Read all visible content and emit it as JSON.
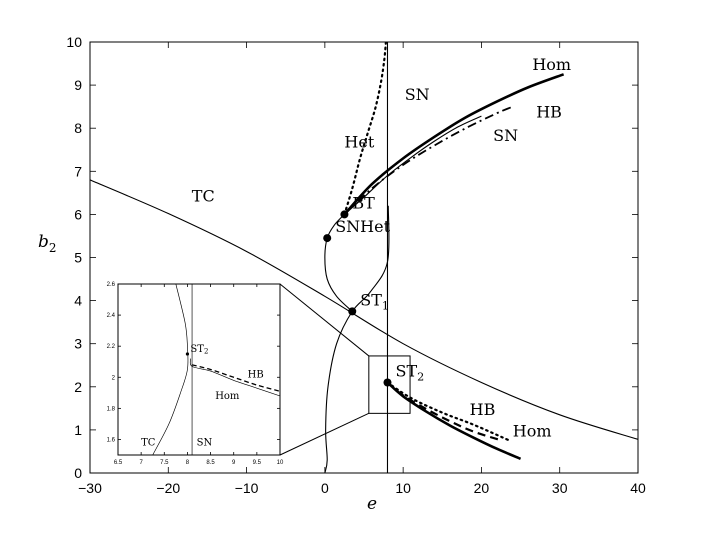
{
  "chart_data": {
    "type": "line",
    "xlabel": "e",
    "ylabel": "b",
    "ylabel_sub": "2",
    "xlim": [
      -30,
      40
    ],
    "ylim": [
      0,
      10
    ],
    "xticks": [
      "−30",
      "−20",
      "−10",
      "0",
      "10",
      "20",
      "30",
      "40"
    ],
    "yticks": [
      "0",
      "1",
      "2",
      "3",
      "4",
      "5",
      "6",
      "7",
      "8",
      "9",
      "10"
    ],
    "grid": false,
    "curves": [
      {
        "label": "TC",
        "style": "solid-thin",
        "x": [
          -30,
          -20,
          -10,
          0,
          10,
          20,
          30,
          40
        ],
        "y": [
          6.8,
          6.02,
          5.14,
          4.1,
          3.0,
          2.1,
          1.35,
          0.78
        ]
      },
      {
        "label": "SN",
        "style": "solid-thin",
        "vertical_at_x": 8.0
      },
      {
        "label": "SN",
        "style": "solid-thin",
        "x": [
          2.5,
          5,
          8,
          11,
          14,
          17,
          20
        ],
        "y": [
          6.0,
          6.4,
          6.9,
          7.32,
          7.7,
          8.03,
          8.28
        ]
      },
      {
        "label": "",
        "style": "solid-thin",
        "x": [
          0,
          0.3,
          0.1,
          0.4,
          1.5,
          3.5,
          5.8,
          8.0,
          8.1
        ],
        "y": [
          0,
          0.3,
          1,
          2,
          3,
          3.75,
          4.2,
          4.9,
          6.2
        ]
      },
      {
        "label": "",
        "style": "solid-thin",
        "x": [
          2.5,
          1.2,
          0.3,
          0,
          0.3,
          1.5,
          3.5
        ],
        "y": [
          6.0,
          5.75,
          5.45,
          5,
          4.5,
          4.1,
          3.75
        ]
      },
      {
        "label": "Hom",
        "style": "solid-thick",
        "x": [
          2.5,
          6,
          10,
          14,
          18,
          22,
          26,
          30.5
        ],
        "y": [
          6.0,
          6.7,
          7.3,
          7.8,
          8.25,
          8.62,
          8.95,
          9.25
        ]
      },
      {
        "label": "HB",
        "style": "dash-dot",
        "x": [
          2.5,
          6,
          10,
          14,
          18,
          22,
          24
        ],
        "y": [
          6.0,
          6.6,
          7.15,
          7.6,
          8.0,
          8.35,
          8.5
        ]
      },
      {
        "label": "Het",
        "style": "dotted",
        "x": [
          2.5,
          3.5,
          4.5,
          5.5,
          6.5,
          7.2,
          7.6,
          7.8
        ],
        "y": [
          6.0,
          6.6,
          7.3,
          7.9,
          8.5,
          9.1,
          9.6,
          10
        ]
      },
      {
        "label": "Hom",
        "style": "solid-thick",
        "x": [
          8.0,
          10,
          13,
          16,
          19,
          22,
          25
        ],
        "y": [
          2.1,
          1.78,
          1.42,
          1.1,
          0.82,
          0.56,
          0.33
        ]
      },
      {
        "label": "HB",
        "style": "dashed",
        "x": [
          8.0,
          10,
          13,
          16,
          19,
          22.5
        ],
        "y": [
          2.1,
          1.8,
          1.48,
          1.2,
          0.96,
          0.76
        ]
      },
      {
        "label": "",
        "style": "dotted",
        "x": [
          8.0,
          11,
          15,
          19,
          23.5
        ],
        "y": [
          2.1,
          1.74,
          1.4,
          1.12,
          0.76
        ]
      }
    ],
    "points": [
      {
        "label": "BT",
        "x": 2.5,
        "y": 6.0
      },
      {
        "label": "SNHet",
        "x": 0.3,
        "y": 5.45
      },
      {
        "label": "ST",
        "sub": "1",
        "x": 3.5,
        "y": 3.75
      },
      {
        "label": "ST",
        "sub": "2",
        "x": 8.0,
        "y": 2.1
      }
    ],
    "curve_labels": [
      {
        "text": "TC",
        "x": -17,
        "y": 6.3
      },
      {
        "text": "Het",
        "x": 2.5,
        "y": 7.55
      },
      {
        "text": "SN",
        "x": 10.2,
        "y": 8.65
      },
      {
        "text": "SN",
        "x": 21.5,
        "y": 7.7
      },
      {
        "text": "HB",
        "x": 27,
        "y": 8.25
      },
      {
        "text": "Hom",
        "x": 26.5,
        "y": 9.35
      },
      {
        "text": "HB",
        "x": 18.5,
        "y": 1.35
      },
      {
        "text": "Hom",
        "x": 24,
        "y": 0.85
      }
    ],
    "inset": {
      "xlim": [
        6.5,
        10
      ],
      "ylim": [
        1.5,
        2.6
      ],
      "xticks": [
        "6.5",
        "7",
        "7.5",
        "8",
        "8.5",
        "9",
        "9.5",
        "10"
      ],
      "yticks": [
        "1.6",
        "1.8",
        "2",
        "2.2",
        "2.4",
        "2.6"
      ],
      "curves": [
        {
          "label": "TC",
          "style": "solid-thin",
          "x": [
            7.25,
            7.6,
            7.85,
            8.0,
            8.0,
            7.95,
            7.75
          ],
          "y": [
            1.5,
            1.7,
            1.9,
            2.05,
            2.2,
            2.35,
            2.6
          ]
        },
        {
          "label": "SN",
          "style": "solid-thin",
          "vertical_at_x": 8.1
        },
        {
          "label": "Hom",
          "style": "solid-thin",
          "x": [
            8.07,
            8.1,
            8.5,
            9.0,
            9.5,
            10
          ],
          "y": [
            2.12,
            2.07,
            2.04,
            1.98,
            1.93,
            1.88
          ]
        },
        {
          "label": "HB",
          "style": "dashed",
          "x": [
            8.1,
            8.5,
            9.0,
            9.5,
            10
          ],
          "y": [
            2.08,
            2.05,
            2.0,
            1.95,
            1.91
          ]
        }
      ],
      "points": [
        {
          "label": "ST",
          "sub": "2",
          "x": 8.0,
          "y": 2.15
        }
      ],
      "curve_labels": [
        {
          "text": "HB",
          "x": 9.3,
          "y": 2.0
        },
        {
          "text": "Hom",
          "x": 8.6,
          "y": 1.86
        },
        {
          "text": "TC",
          "x": 7.0,
          "y": 1.56
        },
        {
          "text": "SN",
          "x": 8.2,
          "y": 1.56
        }
      ]
    },
    "zoom_box": {
      "x": [
        6,
        10.5
      ],
      "y": [
        1.5,
        2.6
      ]
    }
  }
}
